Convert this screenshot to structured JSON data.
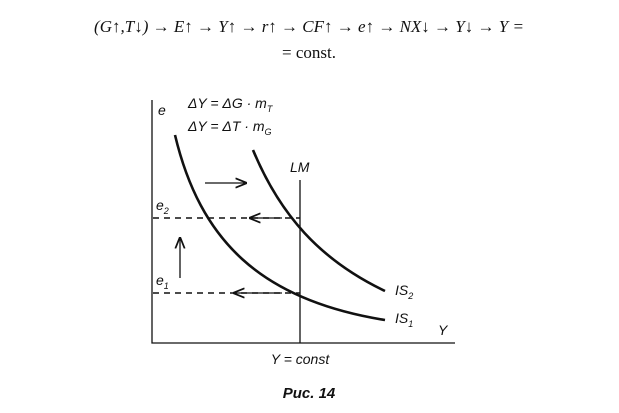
{
  "formula": {
    "line1": "(G↑,T↓) → E↑ → Y↑ → r↑ → CF↑ → e↑ → NX↓ → Y↓ → Y =",
    "line2": "= const."
  },
  "graph": {
    "y_axis_label": "e",
    "x_axis_label": "Y",
    "effect_g": {
      "text": "ΔY = ΔG · m",
      "sub": "T"
    },
    "effect_t": {
      "text": "ΔY = ΔT · m",
      "sub": "G"
    },
    "lm_label": "LM",
    "e2_label": {
      "text": "e",
      "sub": "2"
    },
    "e1_label": {
      "text": "e",
      "sub": "1"
    },
    "is2_label": {
      "text": "IS",
      "sub": "2"
    },
    "is1_label": {
      "text": "IS",
      "sub": "1"
    },
    "lm_position_label": "Y = const"
  },
  "caption": "Рис. 14"
}
